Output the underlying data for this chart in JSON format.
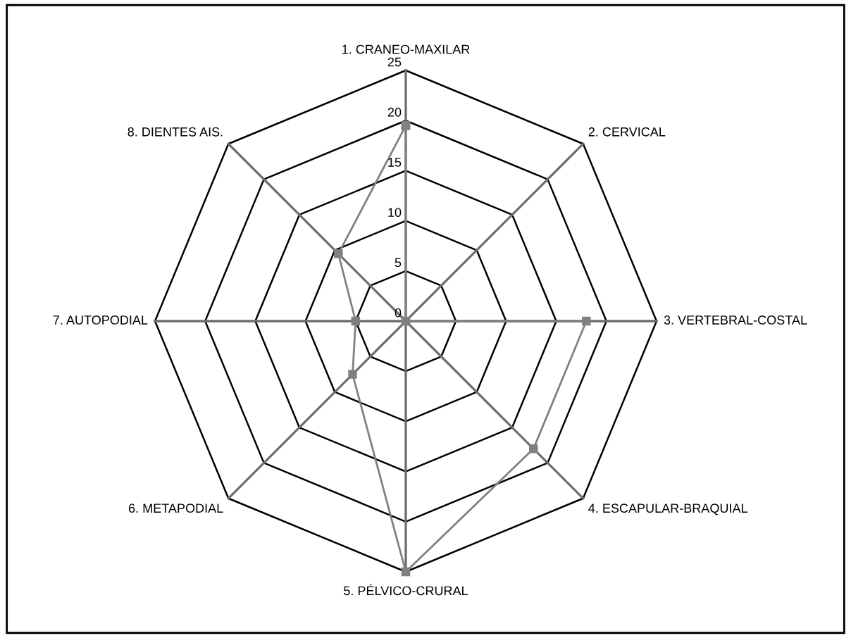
{
  "chart_data": {
    "type": "radar",
    "categories": [
      "1. CRANEO-MAXILAR",
      "2. CERVICAL",
      "3. VERTEBRAL-COSTAL",
      "4. ESCAPULAR-BRAQUIAL",
      "5. PÉLVICO-CRURAL",
      "6. METAPODIAL",
      "7. AUTOPODIAL",
      "8. DIENTES AIS."
    ],
    "series": [
      {
        "color": "#808080",
        "values": [
          19.5,
          0,
          18,
          18,
          25,
          7.5,
          5,
          9.5
        ]
      }
    ],
    "ylim": [
      0,
      25
    ],
    "yticks": [
      0,
      5,
      10,
      15,
      20,
      25
    ],
    "marker": "square",
    "line_style": "solid",
    "grid": true
  }
}
